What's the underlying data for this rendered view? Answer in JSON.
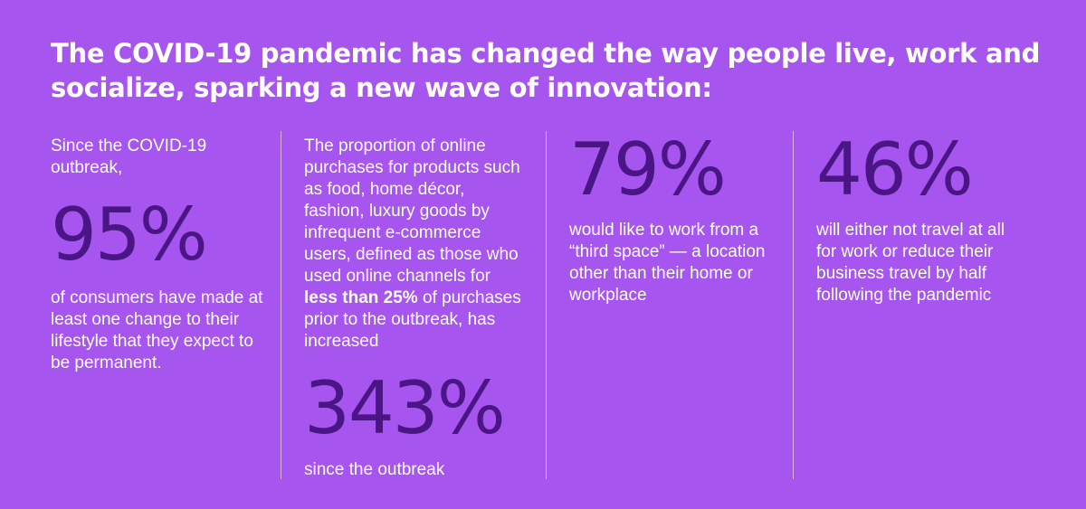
{
  "headline": "The COVID-19 pandemic has changed the way people live, work and socialize, sparking a new wave of innovation:",
  "stats": [
    {
      "intro": "Since the COVID-19 outbreak,",
      "value": "95%",
      "description": "of consumers have made at least one change to their lifestyle that they expect to be permanent."
    },
    {
      "intro_before": "The proportion of online purchases for products such as food, home décor, fashion, luxury goods by infrequent e-commerce users, defined as those who used online channels for ",
      "intro_bold": "less than 25%",
      "intro_after": " of purchases prior to the outbreak, has increased",
      "value": "343%",
      "description": "since the outbreak"
    },
    {
      "value": "79%",
      "description": "would like to work from a “third space” — a location other than their home or workplace"
    },
    {
      "value": "46%",
      "description": "will either not travel at all for work or reduce their business travel by half following the pandemic"
    }
  ],
  "colors": {
    "background": "#a655ee",
    "stat": "#4a1584",
    "text": "#ffffff",
    "divider": "#d7b3f6"
  }
}
